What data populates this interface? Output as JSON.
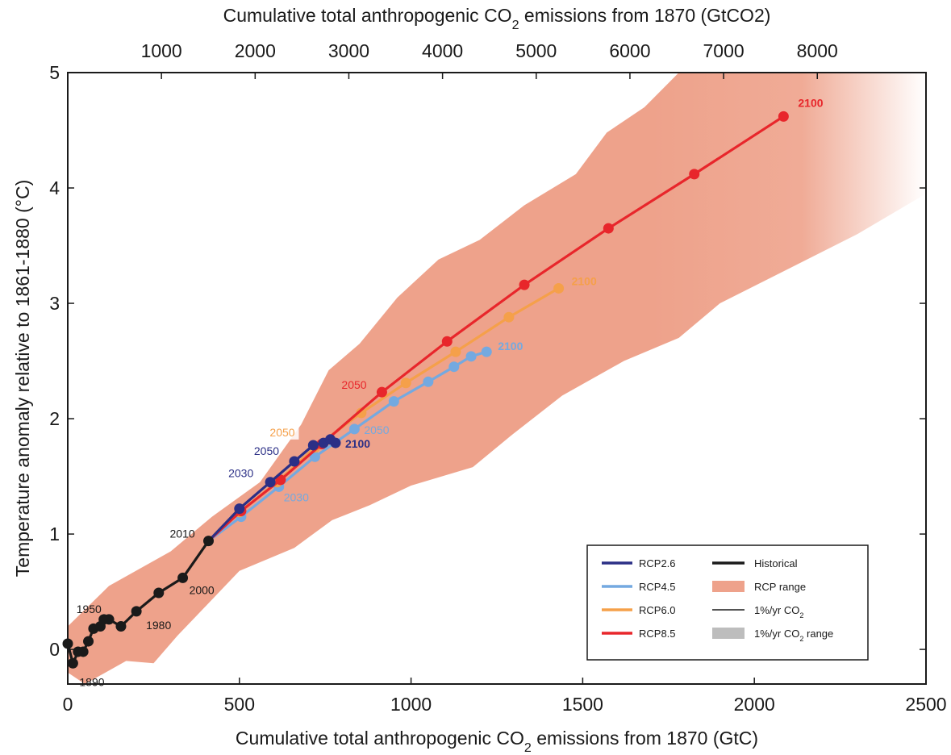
{
  "chart_data": {
    "type": "line",
    "xlabel": "Cumulative total anthropogenic CO2 emissions from 1870 (GtC)",
    "x2label": "Cumulative total anthropogenic CO2 emissions from 1870 (GtCO2)",
    "ylabel": "Temperature anomaly relative to 1861-1880 (°C)",
    "xlim": [
      0,
      2500
    ],
    "ylim": [
      -0.3,
      5
    ],
    "x_ticks": [
      0,
      500,
      1000,
      1500,
      2000,
      2500
    ],
    "x2_ticks": [
      1000,
      2000,
      3000,
      4000,
      5000,
      6000,
      7000,
      8000
    ],
    "y_ticks": [
      0,
      1,
      2,
      3,
      4,
      5
    ],
    "series": [
      {
        "name": "Historical",
        "color": "#1a1a1a",
        "points": [
          [
            0,
            0.05
          ],
          [
            15,
            -0.12
          ],
          [
            30,
            -0.02
          ],
          [
            45,
            -0.02
          ],
          [
            60,
            0.07
          ],
          [
            75,
            0.18
          ],
          [
            95,
            0.2
          ],
          [
            105,
            0.26
          ],
          [
            120,
            0.26
          ],
          [
            155,
            0.2
          ],
          [
            200,
            0.33
          ],
          [
            265,
            0.49
          ],
          [
            335,
            0.62
          ],
          [
            410,
            0.94
          ]
        ]
      },
      {
        "name": "RCP2.6",
        "color": "#2b2f86",
        "points": [
          [
            410,
            0.94
          ],
          [
            500,
            1.22
          ],
          [
            590,
            1.45
          ],
          [
            660,
            1.63
          ],
          [
            715,
            1.77
          ],
          [
            745,
            1.79
          ],
          [
            765,
            1.82
          ],
          [
            780,
            1.79
          ]
        ]
      },
      {
        "name": "RCP4.5",
        "color": "#74a9e0",
        "points": [
          [
            410,
            0.94
          ],
          [
            505,
            1.15
          ],
          [
            615,
            1.41
          ],
          [
            720,
            1.67
          ],
          [
            835,
            1.91
          ],
          [
            950,
            2.15
          ],
          [
            1050,
            2.32
          ],
          [
            1125,
            2.45
          ],
          [
            1175,
            2.54
          ],
          [
            1220,
            2.58
          ]
        ]
      },
      {
        "name": "RCP6.0",
        "color": "#f5a04a",
        "points": [
          [
            410,
            0.94
          ],
          [
            500,
            1.19
          ],
          [
            610,
            1.45
          ],
          [
            720,
            1.75
          ],
          [
            855,
            2.05
          ],
          [
            985,
            2.31
          ],
          [
            1130,
            2.58
          ],
          [
            1285,
            2.88
          ],
          [
            1430,
            3.13
          ]
        ]
      },
      {
        "name": "RCP8.5",
        "color": "#e8262b",
        "points": [
          [
            410,
            0.94
          ],
          [
            505,
            1.2
          ],
          [
            620,
            1.47
          ],
          [
            740,
            1.78
          ],
          [
            915,
            2.23
          ],
          [
            1105,
            2.67
          ],
          [
            1330,
            3.16
          ],
          [
            1575,
            3.65
          ],
          [
            1825,
            4.12
          ],
          [
            2085,
            4.62
          ]
        ]
      }
    ],
    "range_band": {
      "name": "RCP range",
      "color": "#eea28b",
      "upper": [
        [
          0,
          0.2
        ],
        [
          120,
          0.55
        ],
        [
          300,
          0.85
        ],
        [
          420,
          1.15
        ],
        [
          560,
          1.45
        ],
        [
          680,
          1.95
        ],
        [
          760,
          2.42
        ],
        [
          850,
          2.65
        ],
        [
          960,
          3.05
        ],
        [
          1080,
          3.38
        ],
        [
          1200,
          3.55
        ],
        [
          1330,
          3.85
        ],
        [
          1480,
          4.12
        ],
        [
          1570,
          4.48
        ],
        [
          1680,
          4.7
        ],
        [
          1780,
          5.0
        ],
        [
          2500,
          5.0
        ]
      ],
      "lower": [
        [
          2500,
          3.95
        ],
        [
          2300,
          3.6
        ],
        [
          2100,
          3.3
        ],
        [
          1900,
          3.0
        ],
        [
          1780,
          2.7
        ],
        [
          1620,
          2.5
        ],
        [
          1440,
          2.2
        ],
        [
          1290,
          1.85
        ],
        [
          1180,
          1.58
        ],
        [
          1000,
          1.42
        ],
        [
          880,
          1.25
        ],
        [
          770,
          1.12
        ],
        [
          660,
          0.88
        ],
        [
          500,
          0.68
        ],
        [
          410,
          0.4
        ],
        [
          320,
          0.12
        ],
        [
          250,
          -0.12
        ],
        [
          170,
          -0.1
        ],
        [
          50,
          -0.3
        ],
        [
          0,
          -0.2
        ]
      ]
    },
    "point_labels": [
      {
        "text": "1890",
        "x": 15,
        "y": -0.12,
        "color": "#1a1a1a",
        "dx": 8,
        "dy": 28
      },
      {
        "text": "1950",
        "x": 105,
        "y": 0.26,
        "color": "#1a1a1a",
        "dx": -34,
        "dy": -8
      },
      {
        "text": "1980",
        "x": 200,
        "y": 0.33,
        "color": "#1a1a1a",
        "dx": 12,
        "dy": 22
      },
      {
        "text": "2000",
        "x": 335,
        "y": 0.62,
        "color": "#1a1a1a",
        "dx": 8,
        "dy": 20
      },
      {
        "text": "2010",
        "x": 410,
        "y": 0.94,
        "color": "#1a1a1a",
        "dx": -48,
        "dy": -4
      },
      {
        "text": "2030",
        "x": 590,
        "y": 1.45,
        "color": "#2b2f86",
        "dx": -52,
        "dy": -6
      },
      {
        "text": "2050",
        "x": 660,
        "y": 1.63,
        "color": "#2b2f86",
        "dx": -50,
        "dy": -8
      },
      {
        "text": "2100",
        "x": 780,
        "y": 1.79,
        "color": "#2b2f86",
        "dx": 12,
        "dy": 6,
        "bold": true
      },
      {
        "text": "2030",
        "x": 615,
        "y": 1.41,
        "color": "#74a9e0",
        "dx": 6,
        "dy": 18
      },
      {
        "text": "2050",
        "x": 835,
        "y": 1.91,
        "color": "#74a9e0",
        "dx": 12,
        "dy": 6
      },
      {
        "text": "2100",
        "x": 1220,
        "y": 2.58,
        "color": "#74a9e0",
        "dx": 14,
        "dy": -2,
        "bold": true
      },
      {
        "text": "2050",
        "x": 720,
        "y": 1.75,
        "color": "#f5a04a",
        "dx": -56,
        "dy": -14
      },
      {
        "text": "2100",
        "x": 1430,
        "y": 3.13,
        "color": "#f5a04a",
        "dx": 16,
        "dy": -4,
        "bold": true
      },
      {
        "text": "2050",
        "x": 915,
        "y": 2.23,
        "color": "#e8262b",
        "dx": -50,
        "dy": -4
      },
      {
        "text": "2100",
        "x": 2085,
        "y": 4.62,
        "color": "#e8262b",
        "dx": 18,
        "dy": -12,
        "bold": true
      }
    ],
    "legend": {
      "placement": "bottom-right",
      "col1": [
        {
          "label": "RCP2.6",
          "color": "#2b2f86",
          "kind": "line"
        },
        {
          "label": "RCP4.5",
          "color": "#74a9e0",
          "kind": "line"
        },
        {
          "label": "RCP6.0",
          "color": "#f5a04a",
          "kind": "line"
        },
        {
          "label": "RCP8.5",
          "color": "#e8262b",
          "kind": "line"
        }
      ],
      "col2": [
        {
          "label": "Historical",
          "color": "#1a1a1a",
          "kind": "thick"
        },
        {
          "label": "RCP range",
          "color": "#eea28b",
          "kind": "patch"
        },
        {
          "label": "1%/yr CO2",
          "color": "#1a1a1a",
          "kind": "thin"
        },
        {
          "label": "1%/yr CO2 range",
          "color": "#bdbdbd",
          "kind": "patch"
        }
      ]
    }
  }
}
